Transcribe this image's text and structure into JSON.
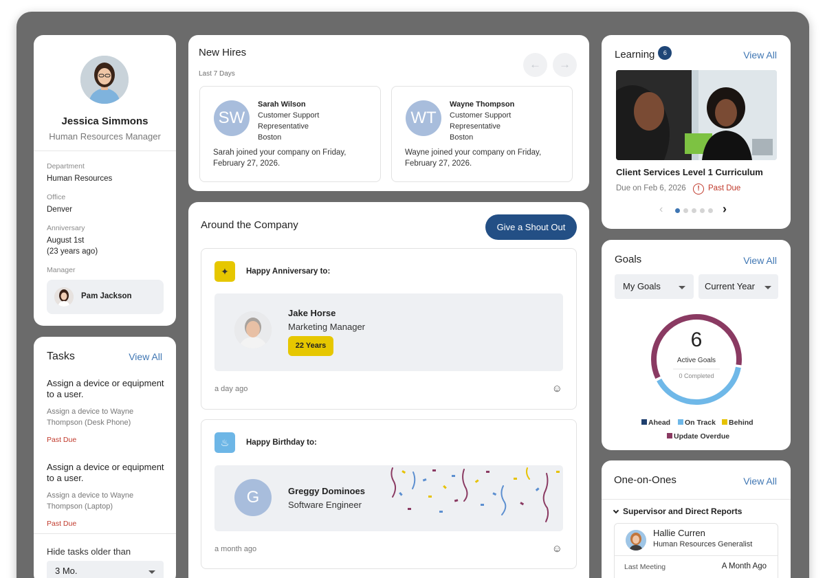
{
  "profile": {
    "name": "Jessica Simmons",
    "role": "Human Resources Manager",
    "department_label": "Department",
    "department": "Human Resources",
    "office_label": "Office",
    "office": "Denver",
    "anniversary_label": "Anniversary",
    "anniversary": "August 1st",
    "anniversary_years": "(23 years ago)",
    "manager_label": "Manager",
    "manager": "Pam Jackson"
  },
  "tasks": {
    "title": "Tasks",
    "view_all": "View All",
    "items": [
      {
        "title": "Assign a device or equipment to a user.",
        "subtitle": "Assign a device to Wayne Thompson (Desk Phone)",
        "status": "Past Due"
      },
      {
        "title": "Assign a device or equipment to a user.",
        "subtitle": "Assign a device to Wayne Thompson (Laptop)",
        "status": "Past Due"
      }
    ],
    "filter_label": "Hide tasks older than",
    "filter_value": "3 Mo."
  },
  "new_hires": {
    "title": "New Hires",
    "subtitle": "Last 7 Days",
    "items": [
      {
        "initials": "SW",
        "name": "Sarah Wilson",
        "title_line1": "Customer Support",
        "title_line2": "Representative",
        "location": "Boston",
        "desc": "Sarah joined your company on Friday, February 27, 2026."
      },
      {
        "initials": "WT",
        "name": "Wayne Thompson",
        "title_line1": "Customer Support",
        "title_line2": "Representative",
        "location": "Boston",
        "desc": "Wayne joined your company on Friday, February 27, 2026."
      }
    ]
  },
  "around": {
    "title": "Around the Company",
    "shout_out": "Give a Shout Out",
    "anniversary": {
      "header": "Happy Anniversary to:",
      "name": "Jake Horse",
      "role": "Marketing Manager",
      "badge": "22 Years",
      "time": "a day ago"
    },
    "birthday": {
      "header": "Happy Birthday to:",
      "initial": "G",
      "name": "Greggy Dominoes",
      "role": "Software Engineer",
      "time": "a month ago"
    }
  },
  "learning": {
    "title": "Learning",
    "count": "6",
    "view_all": "View All",
    "course": "Client Services Level 1 Curriculum",
    "due": "Due on Feb 6, 2026",
    "status": "Past Due"
  },
  "goals": {
    "title": "Goals",
    "view_all": "View All",
    "filter1": "My Goals",
    "filter2": "Current Year",
    "count": "6",
    "count_label": "Active Goals",
    "completed": "0 Completed",
    "legend": [
      {
        "label": "Ahead",
        "color": "#1f3f6e"
      },
      {
        "label": "On Track",
        "color": "#6fb8e8"
      },
      {
        "label": "Behind",
        "color": "#e6c200"
      },
      {
        "label": "Update Overdue",
        "color": "#8a3a62"
      }
    ],
    "ring": {
      "on_track_fraction": 0.4,
      "update_overdue_fraction": 0.6
    }
  },
  "one_on_ones": {
    "title": "One-on-Ones",
    "view_all": "View All",
    "section": "Supervisor and Direct Reports",
    "person": "Hallie Curren",
    "person_role": "Human Resources Generalist",
    "last_meeting_label": "Last Meeting",
    "last_meeting": "A Month Ago"
  }
}
